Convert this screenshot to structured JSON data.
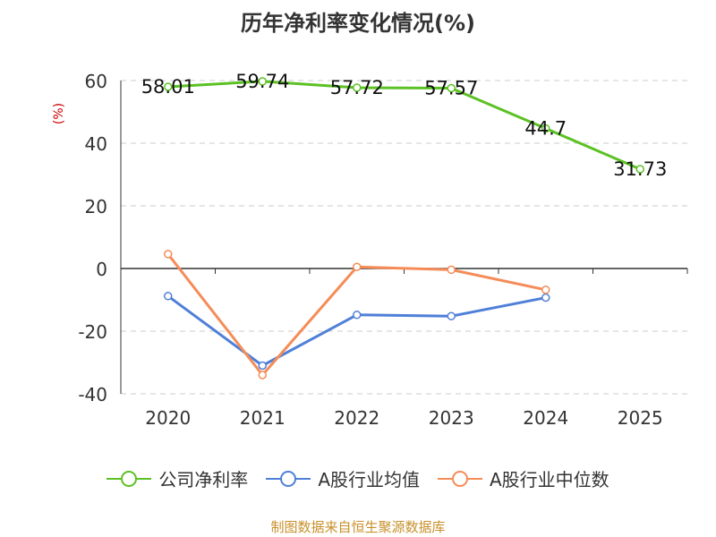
{
  "chart_data": {
    "type": "line",
    "title": "历年净利率变化情况(%)",
    "ylabel": "(%)",
    "xlabel": "",
    "ylim": [
      -40,
      60
    ],
    "yticks": [
      60,
      40,
      20,
      0,
      -20,
      -40
    ],
    "categories": [
      "2020",
      "2021",
      "2022",
      "2023",
      "2024",
      "2025"
    ],
    "grid": true,
    "legend_position": "bottom",
    "series": [
      {
        "name": "公司净利率",
        "color": "#5cc124",
        "values": [
          58.01,
          59.74,
          57.72,
          57.57,
          44.7,
          31.73
        ],
        "labels": [
          "58.01",
          "59.74",
          "57.72",
          "57.57",
          "44.7",
          "31.73"
        ],
        "show_labels": true
      },
      {
        "name": "A股行业均值",
        "color": "#4f7fd8",
        "values": [
          -8.8,
          -31.0,
          -14.8,
          -15.2,
          -9.3,
          null
        ],
        "show_labels": false
      },
      {
        "name": "A股行业中位数",
        "color": "#f58c58",
        "values": [
          4.6,
          -34.0,
          0.5,
          -0.4,
          -6.8,
          null
        ],
        "show_labels": false
      }
    ]
  },
  "footer": {
    "source": "制图数据来自恒生聚源数据库"
  }
}
